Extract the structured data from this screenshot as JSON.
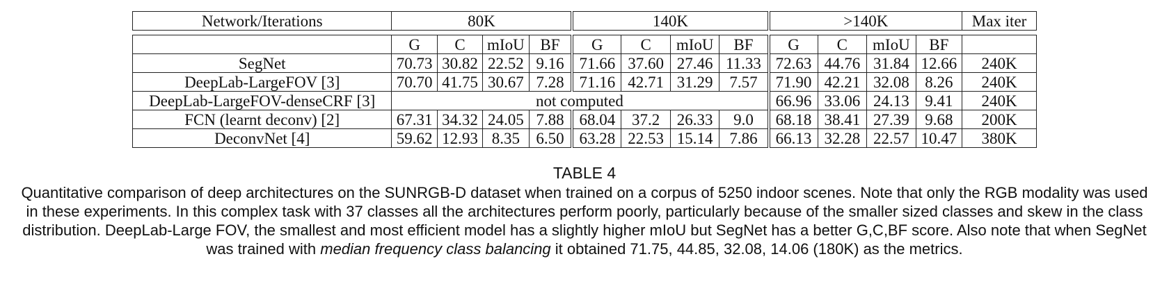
{
  "table": {
    "head": {
      "network_label": "Network/Iterations",
      "groups": [
        "80K",
        "140K",
        ">140K"
      ],
      "max_iter_label": "Max iter",
      "sub_headers": [
        "G",
        "C",
        "mIoU",
        "BF"
      ]
    },
    "rows": [
      {
        "name": "SegNet",
        "g80": [
          "70.73",
          "30.82",
          "22.52",
          "9.16"
        ],
        "g140": [
          "71.66",
          "37.60",
          "27.46",
          "11.33"
        ],
        "gmax": [
          "72.63",
          "44.76",
          "31.84",
          "12.66"
        ],
        "max_iter": "240K"
      },
      {
        "name": "DeepLab-LargeFOV [3]",
        "g80": [
          "70.70",
          "41.75",
          "30.67",
          "7.28"
        ],
        "g140": [
          "71.16",
          "42.71",
          "31.29",
          "7.57"
        ],
        "gmax": [
          "71.90",
          "42.21",
          "32.08",
          "8.26"
        ],
        "max_iter": "240K"
      },
      {
        "name": "DeepLab-LargeFOV-denseCRF [3]",
        "merged": "not computed",
        "gmax": [
          "66.96",
          "33.06",
          "24.13",
          "9.41"
        ],
        "max_iter": "240K"
      },
      {
        "name": "FCN (learnt deconv) [2]",
        "g80": [
          "67.31",
          "34.32",
          "24.05",
          "7.88"
        ],
        "g140": [
          "68.04",
          "37.2",
          "26.33",
          "9.0"
        ],
        "gmax": [
          "68.18",
          "38.41",
          "27.39",
          "9.68"
        ],
        "max_iter": "200K"
      },
      {
        "name": "DeconvNet [4]",
        "g80": [
          "59.62",
          "12.93",
          "8.35",
          "6.50"
        ],
        "g140": [
          "63.28",
          "22.53",
          "15.14",
          "7.86"
        ],
        "gmax": [
          "66.13",
          "32.28",
          "22.57",
          "10.47"
        ],
        "max_iter": "380K"
      }
    ]
  },
  "caption": {
    "table_number": "TABLE 4",
    "text_before_em": "Quantitative comparison of deep architectures on the SUNRGB-D dataset when trained on a corpus of 5250 indoor scenes. Note that only the RGB modality was used in these experiments. In this complex task with 37 classes all the architectures perform poorly, particularly because of the smaller sized classes and skew in the class distribution. DeepLab-Large FOV, the smallest and most efficient model has a slightly higher mIoU but SegNet has a better G,C,BF score. Also note that when SegNet was trained with ",
    "emphasis": "median frequency class balancing",
    "text_after_em": " it obtained 71.75, 44.85, 32.08, 14.06 (180K) as the metrics."
  }
}
